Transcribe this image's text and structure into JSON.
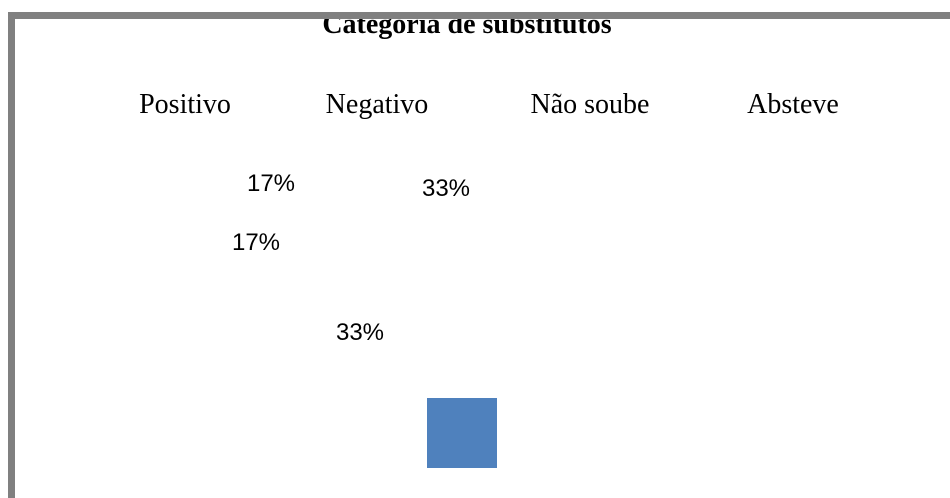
{
  "chart_data": {
    "type": "pie",
    "title": "Categoria de substitutos",
    "categories": [
      "Positivo",
      "Negativo",
      "Não soube",
      "Absteve"
    ],
    "values": [
      17,
      33,
      17,
      33
    ],
    "value_labels": [
      "17%",
      "33%",
      "17%",
      "33%"
    ],
    "color": "#4f81bd"
  }
}
